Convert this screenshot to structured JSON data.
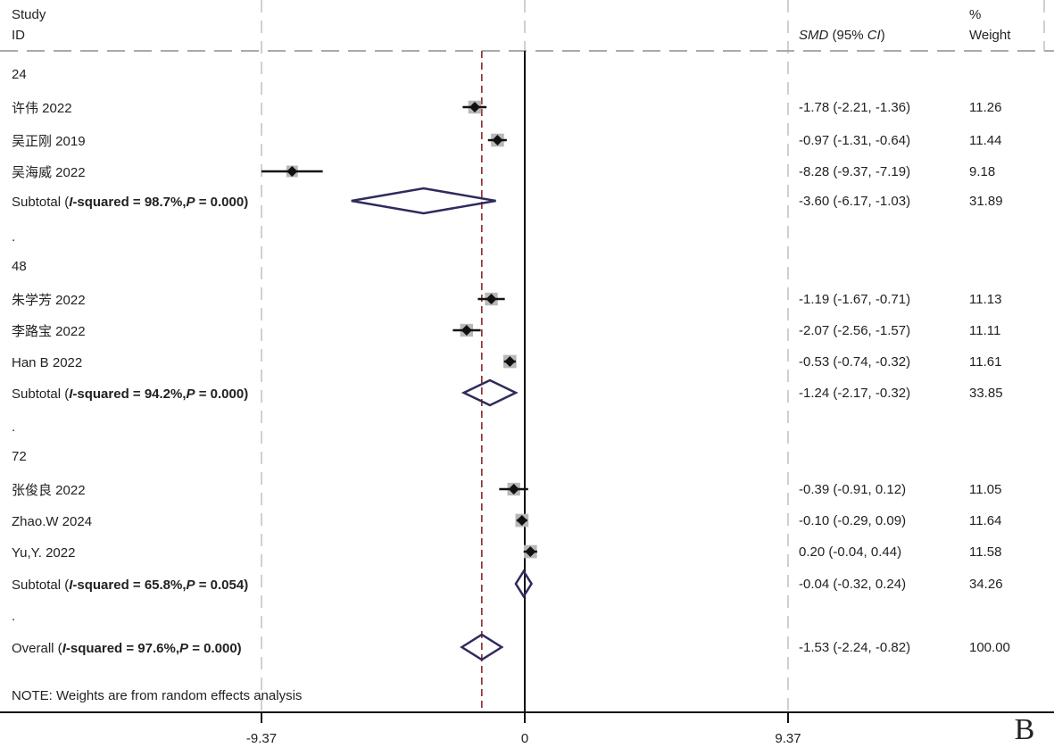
{
  "chart_data": {
    "type": "forest",
    "headers": {
      "study_line1": "Study",
      "study_line2": "ID",
      "effect_prefix": "SMD",
      "effect_mid": " (95% ",
      "effect_ci": "CI",
      "effect_suffix": ")",
      "weight_line1": "%",
      "weight_line2": "Weight"
    },
    "xticks": [
      -9.37,
      0,
      9.37
    ],
    "xtick_labels": [
      "-9.37",
      "0",
      "9.37"
    ],
    "xlim": [
      -9.37,
      9.37
    ],
    "overall_line": -1.53,
    "rows": [
      {
        "kind": "group",
        "label": "24"
      },
      {
        "kind": "study",
        "label": "许伟 2022",
        "es": -1.78,
        "lo": -2.21,
        "hi": -1.36,
        "text": "-1.78 (-2.21, -1.36)",
        "weight": 11.26,
        "weight_text": "11.26"
      },
      {
        "kind": "study",
        "label": "吴正刚 2019",
        "es": -0.97,
        "lo": -1.31,
        "hi": -0.64,
        "text": "-0.97 (-1.31, -0.64)",
        "weight": 11.44,
        "weight_text": "11.44"
      },
      {
        "kind": "study",
        "label": "吴海威 2022",
        "es": -8.28,
        "lo": -9.37,
        "hi": -7.19,
        "text": "-8.28 (-9.37, -7.19)",
        "weight": 9.18,
        "weight_text": "9.18"
      },
      {
        "kind": "subtotal",
        "label": "Subtotal",
        "i2": "98.7%",
        "p": "0.000",
        "es": -3.6,
        "lo": -6.17,
        "hi": -1.03,
        "text": "-3.60 (-6.17, -1.03)",
        "weight": 31.89,
        "weight_text": "31.89"
      },
      {
        "kind": "spacer",
        "label": "."
      },
      {
        "kind": "group",
        "label": "48"
      },
      {
        "kind": "study",
        "label": "朱学芳 2022",
        "es": -1.19,
        "lo": -1.67,
        "hi": -0.71,
        "text": "-1.19 (-1.67, -0.71)",
        "weight": 11.13,
        "weight_text": "11.13"
      },
      {
        "kind": "study",
        "label": "李路宝 2022",
        "es": -2.07,
        "lo": -2.56,
        "hi": -1.57,
        "text": "-2.07 (-2.56, -1.57)",
        "weight": 11.11,
        "weight_text": "11.11"
      },
      {
        "kind": "study",
        "label": "Han B 2022",
        "es": -0.53,
        "lo": -0.74,
        "hi": -0.32,
        "text": "-0.53 (-0.74, -0.32)",
        "weight": 11.61,
        "weight_text": "11.61"
      },
      {
        "kind": "subtotal",
        "label": "Subtotal",
        "i2": "94.2%",
        "p": "0.000",
        "es": -1.24,
        "lo": -2.17,
        "hi": -0.32,
        "text": "-1.24 (-2.17, -0.32)",
        "weight": 33.85,
        "weight_text": "33.85"
      },
      {
        "kind": "spacer",
        "label": "."
      },
      {
        "kind": "group",
        "label": "72"
      },
      {
        "kind": "study",
        "label": "张俊良 2022",
        "es": -0.39,
        "lo": -0.91,
        "hi": 0.12,
        "text": "-0.39 (-0.91, 0.12)",
        "weight": 11.05,
        "weight_text": "11.05"
      },
      {
        "kind": "study",
        "label": "Zhao.W 2024",
        "es": -0.1,
        "lo": -0.29,
        "hi": 0.09,
        "text": "-0.10 (-0.29, 0.09)",
        "weight": 11.64,
        "weight_text": "11.64"
      },
      {
        "kind": "study",
        "label": "Yu,Y. 2022",
        "es": 0.2,
        "lo": -0.04,
        "hi": 0.44,
        "text": "0.20 (-0.04, 0.44)",
        "weight": 11.58,
        "weight_text": "11.58"
      },
      {
        "kind": "subtotal",
        "label": "Subtotal",
        "i2": "65.8%",
        "p": "0.054",
        "es": -0.04,
        "lo": -0.32,
        "hi": 0.24,
        "text": "-0.04 (-0.32, 0.24)",
        "weight": 34.26,
        "weight_text": "34.26"
      },
      {
        "kind": "spacer",
        "label": "."
      },
      {
        "kind": "overall",
        "label": "Overall",
        "i2": "97.6%",
        "p": "0.000",
        "es": -1.53,
        "lo": -2.24,
        "hi": -0.82,
        "text": "-1.53 (-2.24, -0.82)",
        "weight": 100.0,
        "weight_text": "100.00"
      }
    ],
    "note": "NOTE: Weights are from random effects analysis",
    "panel_label": "B",
    "colors": {
      "diamond": "#2e2b5c",
      "square": "#b8b8b8",
      "overall_line": "#8b2a2a",
      "grid": "#d0d0d0",
      "header_rule": "#aaaaaa"
    }
  }
}
